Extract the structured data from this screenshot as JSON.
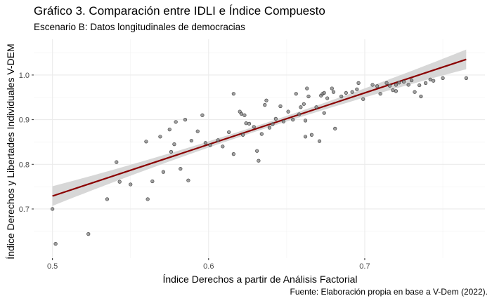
{
  "title": "Gráfico 3. Comparación entre IDLI e Índice Compuesto",
  "subtitle": "Escenario B: Datos longitudinales de democracias",
  "caption": "Fuente: Elaboración propia en base a V-Dem (2022).",
  "chart_data": {
    "type": "scatter",
    "xlabel": "Índice Derechos a partir de Análisis Factorial",
    "ylabel": "Índice Derechos y Libertades Individuales V-DEM",
    "xlim": [
      0.488,
      0.777
    ],
    "ylim": [
      0.59,
      1.08
    ],
    "xticks": [
      0.5,
      0.6,
      0.7
    ],
    "yticks": [
      0.7,
      0.8,
      0.9,
      1.0
    ],
    "xtick_labels": [
      "0.5",
      "0.6",
      "0.7"
    ],
    "ytick_labels": [
      "0.7",
      "0.8",
      "0.9",
      "1.0"
    ],
    "grid": true,
    "point_color": "#808080",
    "fit_line_color": "#8b0000",
    "ci_band_color": "#d3d3d3",
    "fit": {
      "method": "linear",
      "x_range": [
        0.5,
        0.765
      ],
      "y_start": 0.729,
      "y_end": 1.035,
      "ci_halfwidth_ends": 0.022,
      "ci_halfwidth_center": 0.006
    },
    "points": [
      {
        "x": 0.5,
        "y": 0.7
      },
      {
        "x": 0.502,
        "y": 0.622
      },
      {
        "x": 0.523,
        "y": 0.644
      },
      {
        "x": 0.535,
        "y": 0.722
      },
      {
        "x": 0.541,
        "y": 0.805
      },
      {
        "x": 0.543,
        "y": 0.761
      },
      {
        "x": 0.55,
        "y": 0.755
      },
      {
        "x": 0.56,
        "y": 0.851
      },
      {
        "x": 0.561,
        "y": 0.722
      },
      {
        "x": 0.564,
        "y": 0.762
      },
      {
        "x": 0.569,
        "y": 0.862
      },
      {
        "x": 0.571,
        "y": 0.783
      },
      {
        "x": 0.575,
        "y": 0.878
      },
      {
        "x": 0.576,
        "y": 0.828
      },
      {
        "x": 0.578,
        "y": 0.845
      },
      {
        "x": 0.579,
        "y": 0.895
      },
      {
        "x": 0.582,
        "y": 0.79
      },
      {
        "x": 0.585,
        "y": 0.9
      },
      {
        "x": 0.587,
        "y": 0.764
      },
      {
        "x": 0.589,
        "y": 0.853
      },
      {
        "x": 0.593,
        "y": 0.874
      },
      {
        "x": 0.596,
        "y": 0.91
      },
      {
        "x": 0.598,
        "y": 0.848
      },
      {
        "x": 0.601,
        "y": 0.843
      },
      {
        "x": 0.606,
        "y": 0.854
      },
      {
        "x": 0.609,
        "y": 0.84
      },
      {
        "x": 0.613,
        "y": 0.872
      },
      {
        "x": 0.616,
        "y": 0.823
      },
      {
        "x": 0.616,
        "y": 0.958
      },
      {
        "x": 0.62,
        "y": 0.918
      },
      {
        "x": 0.621,
        "y": 0.913
      },
      {
        "x": 0.622,
        "y": 0.866
      },
      {
        "x": 0.623,
        "y": 0.91
      },
      {
        "x": 0.624,
        "y": 0.892
      },
      {
        "x": 0.626,
        "y": 0.891
      },
      {
        "x": 0.629,
        "y": 0.884
      },
      {
        "x": 0.631,
        "y": 0.83
      },
      {
        "x": 0.632,
        "y": 0.808
      },
      {
        "x": 0.634,
        "y": 0.868
      },
      {
        "x": 0.636,
        "y": 0.933
      },
      {
        "x": 0.637,
        "y": 0.943
      },
      {
        "x": 0.639,
        "y": 0.882
      },
      {
        "x": 0.641,
        "y": 0.89
      },
      {
        "x": 0.643,
        "y": 0.902
      },
      {
        "x": 0.646,
        "y": 0.93
      },
      {
        "x": 0.648,
        "y": 0.896
      },
      {
        "x": 0.651,
        "y": 0.918
      },
      {
        "x": 0.654,
        "y": 0.9
      },
      {
        "x": 0.656,
        "y": 0.958
      },
      {
        "x": 0.658,
        "y": 0.912
      },
      {
        "x": 0.659,
        "y": 0.928
      },
      {
        "x": 0.661,
        "y": 0.935
      },
      {
        "x": 0.662,
        "y": 0.898
      },
      {
        "x": 0.662,
        "y": 0.862
      },
      {
        "x": 0.663,
        "y": 0.97
      },
      {
        "x": 0.664,
        "y": 0.952
      },
      {
        "x": 0.666,
        "y": 0.866
      },
      {
        "x": 0.669,
        "y": 0.928
      },
      {
        "x": 0.671,
        "y": 0.852
      },
      {
        "x": 0.672,
        "y": 0.954
      },
      {
        "x": 0.673,
        "y": 0.958
      },
      {
        "x": 0.674,
        "y": 0.96
      },
      {
        "x": 0.674,
        "y": 0.915
      },
      {
        "x": 0.676,
        "y": 0.948
      },
      {
        "x": 0.679,
        "y": 0.97
      },
      {
        "x": 0.68,
        "y": 0.962
      },
      {
        "x": 0.681,
        "y": 0.88
      },
      {
        "x": 0.685,
        "y": 0.952
      },
      {
        "x": 0.688,
        "y": 0.96
      },
      {
        "x": 0.692,
        "y": 0.962
      },
      {
        "x": 0.695,
        "y": 0.968
      },
      {
        "x": 0.696,
        "y": 0.982
      },
      {
        "x": 0.699,
        "y": 0.946
      },
      {
        "x": 0.705,
        "y": 0.978
      },
      {
        "x": 0.708,
        "y": 0.975
      },
      {
        "x": 0.71,
        "y": 0.958
      },
      {
        "x": 0.714,
        "y": 0.982
      },
      {
        "x": 0.716,
        "y": 0.976
      },
      {
        "x": 0.718,
        "y": 0.966
      },
      {
        "x": 0.72,
        "y": 0.978
      },
      {
        "x": 0.72,
        "y": 0.964
      },
      {
        "x": 0.722,
        "y": 0.983
      },
      {
        "x": 0.725,
        "y": 0.985
      },
      {
        "x": 0.728,
        "y": 0.978
      },
      {
        "x": 0.73,
        "y": 0.988
      },
      {
        "x": 0.732,
        "y": 0.962
      },
      {
        "x": 0.735,
        "y": 0.977
      },
      {
        "x": 0.736,
        "y": 0.952
      },
      {
        "x": 0.739,
        "y": 0.982
      },
      {
        "x": 0.742,
        "y": 0.99
      },
      {
        "x": 0.744,
        "y": 0.987
      },
      {
        "x": 0.75,
        "y": 0.993
      },
      {
        "x": 0.765,
        "y": 0.993
      }
    ]
  }
}
